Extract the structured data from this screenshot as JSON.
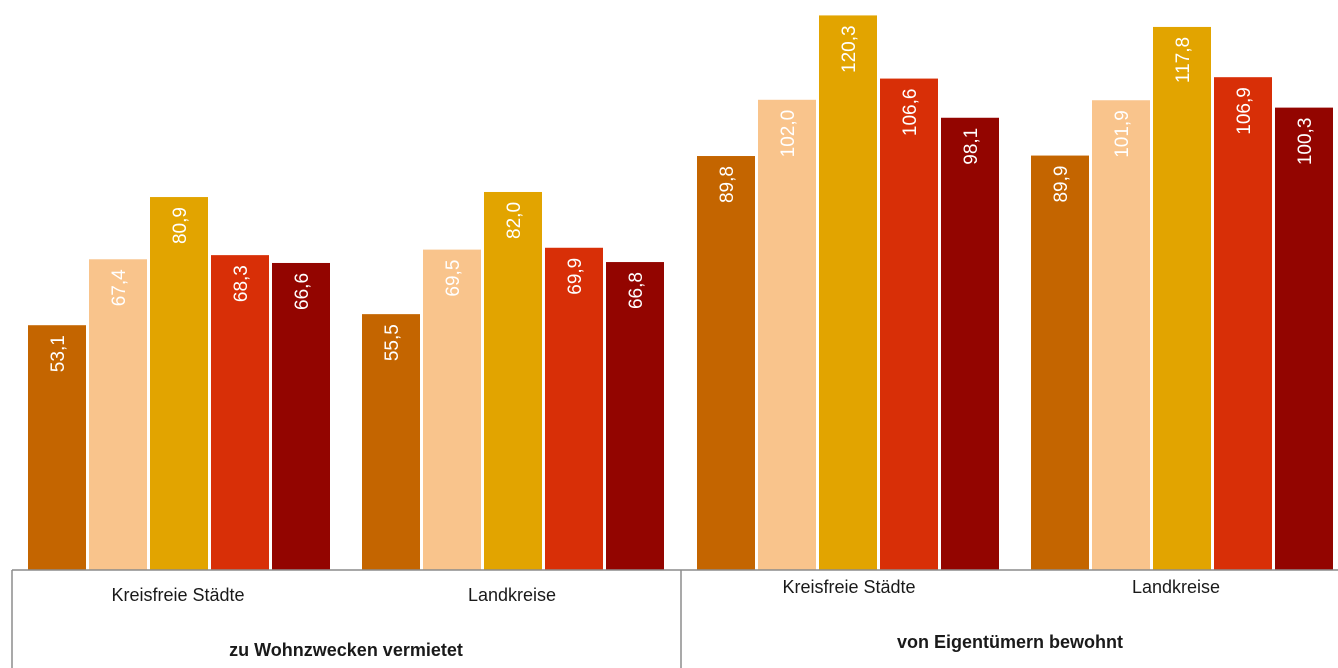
{
  "chart_data": {
    "type": "bar",
    "ylim": [
      0,
      125
    ],
    "colors": [
      "#c46500",
      "#f9c48c",
      "#e2a400",
      "#d82f07",
      "#930500"
    ],
    "groups": [
      {
        "label": "zu Wohnzwecken vermietet",
        "subgroups": [
          {
            "label": "Kreisfreie Städte",
            "values": [
              53.1,
              67.4,
              80.9,
              68.3,
              66.6
            ],
            "value_labels": [
              "53,1",
              "67,4",
              "80,9",
              "68,3",
              "66,6"
            ]
          },
          {
            "label": "Landkreise",
            "values": [
              55.5,
              69.5,
              82.0,
              69.9,
              66.8
            ],
            "value_labels": [
              "55,5",
              "69,5",
              "82,0",
              "69,9",
              "66,8"
            ]
          }
        ]
      },
      {
        "label": "von Eigentümern bewohnt",
        "subgroups": [
          {
            "label": "Kreisfreie Städte",
            "values": [
              89.8,
              102.0,
              120.3,
              106.6,
              98.1
            ],
            "value_labels": [
              "89,8",
              "102,0",
              "120,3",
              "106,6",
              "98,1"
            ]
          },
          {
            "label": "Landkreise",
            "values": [
              89.9,
              101.9,
              117.8,
              106.9,
              100.3
            ],
            "value_labels": [
              "89,9",
              "101,9",
              "117,8",
              "106,9",
              "100,3"
            ]
          }
        ]
      }
    ]
  }
}
